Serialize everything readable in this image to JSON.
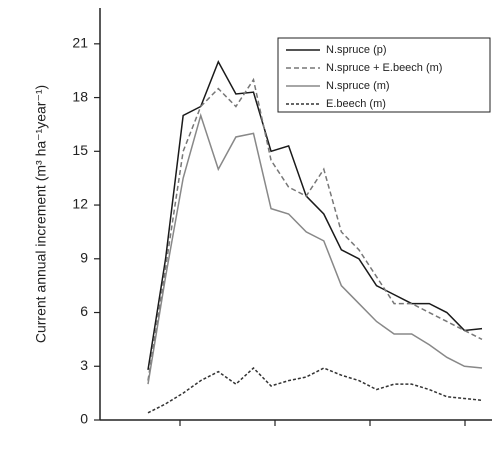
{
  "chart_data": {
    "type": "line",
    "y_label": "Current annual increment (m³ ha⁻¹year⁻¹)",
    "categories": [
      null,
      null,
      null,
      null,
      null,
      null,
      null,
      null,
      null,
      null,
      null,
      null,
      null,
      null,
      null,
      null,
      null,
      null,
      null,
      null
    ],
    "series": [
      {
        "name": "N.spruce (p)",
        "color": "#1a1a1a",
        "dash": "none",
        "values": [
          2.8,
          9,
          17,
          17.5,
          20,
          18.2,
          18.3,
          15,
          15.3,
          12.5,
          11.5,
          9.5,
          9,
          7.5,
          7,
          6.5,
          6.5,
          6,
          5,
          5.1
        ]
      },
      {
        "name": "N.spruce + E.beech (m)",
        "color": "#777777",
        "dash": "5,3",
        "values": [
          2.2,
          8.5,
          15,
          17.5,
          18.5,
          17.5,
          19,
          14.5,
          13,
          12.5,
          14,
          10.5,
          9.5,
          8,
          6.5,
          6.5,
          6,
          5.5,
          5,
          4.5
        ]
      },
      {
        "name": "N.spruce (m)",
        "color": "#888888",
        "dash": "none",
        "values": [
          2,
          8,
          13.5,
          17,
          14,
          15.8,
          16,
          11.8,
          11.5,
          10.5,
          10,
          7.5,
          6.5,
          5.5,
          4.8,
          4.8,
          4.2,
          3.5,
          3,
          2.9
        ]
      },
      {
        "name": "E.beech (m)",
        "color": "#333333",
        "dash": "3,2",
        "values": [
          0.4,
          0.9,
          1.5,
          2.2,
          2.7,
          2,
          2.9,
          1.9,
          2.2,
          2.4,
          2.9,
          2.5,
          2.2,
          1.7,
          2,
          2,
          1.7,
          1.3,
          1.2,
          1.1
        ]
      }
    ],
    "ylim": [
      0,
      23
    ],
    "yticks": [
      0,
      3,
      6,
      9,
      12,
      15,
      18,
      21
    ],
    "legend": "top-right"
  }
}
